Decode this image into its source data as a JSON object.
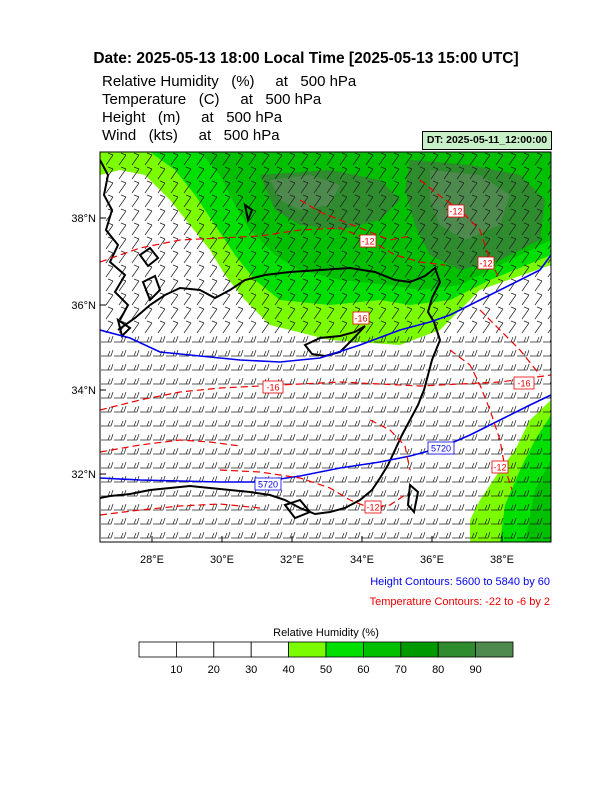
{
  "header": {
    "title": "Date: 2025-05-13  18:00 Local Time [2025-05-13  15:00 UTC]",
    "variables": [
      "Relative Humidity   (%)     at   500 hPa",
      "Temperature   (C)     at   500 hPa",
      "Height   (m)     at   500 hPa",
      "Wind   (kts)     at   500 hPa"
    ],
    "init_time": "DT: 2025-05-11_12:00:00"
  },
  "axes": {
    "lat_labels": [
      "38°N",
      "36°N",
      "34°N",
      "32°N"
    ],
    "lon_labels": [
      "28°E",
      "30°E",
      "32°E",
      "34°E",
      "36°E",
      "38°E"
    ]
  },
  "contour_labels": {
    "height": [
      "5720",
      "5720"
    ],
    "temperature": [
      "-16",
      "-16",
      "-16",
      "-12",
      "-12",
      "-12",
      "-12",
      "-12"
    ]
  },
  "notes": {
    "height": "Height Contours: 5600 to 5840 by 60",
    "temperature": "Temperature Contours: -22 to -6 by 2"
  },
  "colorbar": {
    "title": "Relative Humidity  (%)",
    "ticks": [
      "10",
      "20",
      "30",
      "40",
      "50",
      "60",
      "70",
      "80",
      "90"
    ],
    "colors": [
      "#ffffff",
      "#ffffff",
      "#ffffff",
      "#ffffff",
      "#7cfc00",
      "#00e000",
      "#00c000",
      "#009a00",
      "#2e8b2e",
      "#4e8a4e"
    ]
  },
  "colors": {
    "height_contour": "#0000ee",
    "temperature_contour": "#ee0000",
    "coast": "#000000"
  }
}
